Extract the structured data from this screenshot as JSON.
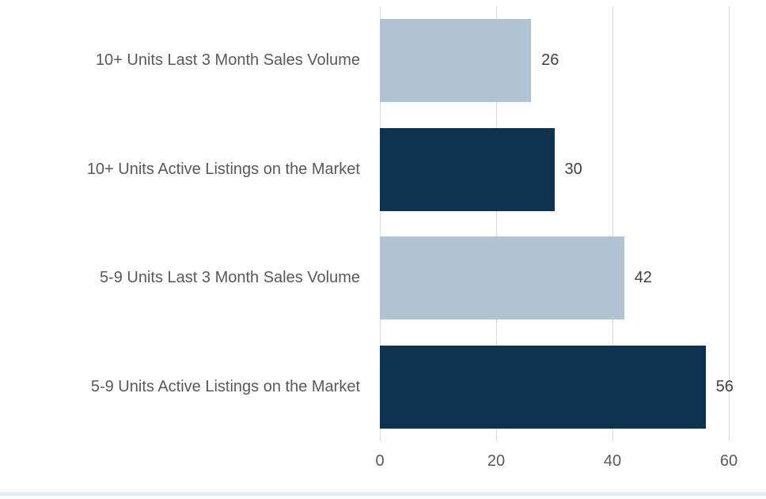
{
  "chart_data": {
    "type": "bar",
    "orientation": "horizontal",
    "title": "",
    "xlabel": "",
    "ylabel": "",
    "categories": [
      "10+ Units Last 3 Month Sales Volume",
      "10+ Units Active Listings on the Market",
      "5-9 Units Last 3 Month Sales Volume",
      "5-9 Units Active Listings on the Market"
    ],
    "values": [
      26,
      30,
      42,
      56
    ],
    "data_labels": [
      "26",
      "30",
      "42",
      "56"
    ],
    "bar_colors": [
      "#b2c4d3",
      "#0d3350",
      "#b2c4d3",
      "#0d3350"
    ],
    "x_ticks": [
      "0",
      "20",
      "40",
      "60"
    ],
    "x_tick_values": [
      0,
      20,
      40,
      60
    ],
    "xlim": [
      0,
      60
    ],
    "grid": true,
    "legend": "none",
    "colors": {
      "light_bar": "#b2c4d3",
      "dark_bar": "#0d3350",
      "gridline": "#d9d9d9",
      "category_text": "#595959",
      "value_text": "#404040",
      "tick_text": "#595959",
      "background": "#ffffff",
      "bottom_strip": "#e4ecf3"
    }
  }
}
